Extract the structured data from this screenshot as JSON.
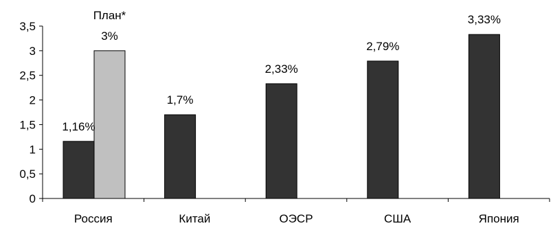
{
  "chart_data": {
    "type": "bar",
    "categories": [
      "Россия",
      "Китай",
      "ОЭСР",
      "США",
      "Япония"
    ],
    "series": [
      {
        "values": [
          1.16,
          1.7,
          2.33,
          2.79,
          3.33
        ],
        "labels": [
          "1,16%",
          "1,7%",
          "2,33%",
          "2,79%",
          "3,33%"
        ],
        "color": "#333333"
      },
      {
        "values": [
          3.0,
          null,
          null,
          null,
          null
        ],
        "labels": [
          "3%",
          null,
          null,
          null,
          null
        ],
        "color": "#c0c0c0"
      }
    ],
    "annotations": [
      {
        "category": "Россия",
        "series": 1,
        "text": "План*"
      }
    ],
    "ylim": [
      0,
      3.5
    ],
    "yticks": [
      {
        "value": 0,
        "label": "0"
      },
      {
        "value": 0.5,
        "label": "0,5"
      },
      {
        "value": 1,
        "label": "1"
      },
      {
        "value": 1.5,
        "label": "1,5"
      },
      {
        "value": 2,
        "label": "2"
      },
      {
        "value": 2.5,
        "label": "2,5"
      },
      {
        "value": 3,
        "label": "3"
      },
      {
        "value": 3.5,
        "label": "3,5"
      }
    ],
    "grid": false,
    "legend": "none"
  }
}
